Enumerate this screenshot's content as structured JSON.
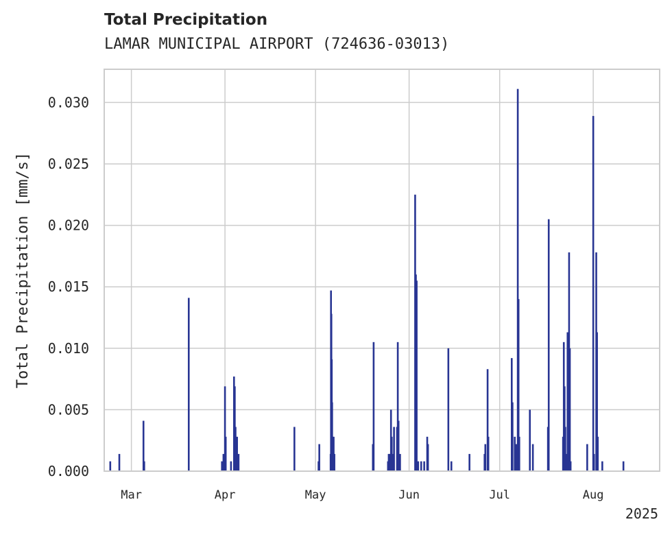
{
  "header": {
    "title": "Total Precipitation",
    "subtitle": "LAMAR MUNICIPAL AIRPORT (724636-03013)"
  },
  "chart_data": {
    "type": "bar",
    "title": "Total Precipitation",
    "subtitle": "LAMAR MUNICIPAL AIRPORT (724636-03013)",
    "xlabel": "",
    "ylabel": "Total Precipitation [mm/s]",
    "xlim": [
      "2025-02-20",
      "2025-08-23"
    ],
    "ylim": [
      0,
      0.0327
    ],
    "grid": true,
    "bar_color": "#283593",
    "y_ticks": [
      0.0,
      0.005,
      0.01,
      0.015,
      0.02,
      0.025,
      0.03
    ],
    "y_tick_labels": [
      "0.000",
      "0.005",
      "0.010",
      "0.015",
      "0.020",
      "0.025",
      "0.030"
    ],
    "x_ticks": [
      "2025-03-01",
      "2025-04-01",
      "2025-05-01",
      "2025-06-01",
      "2025-07-01",
      "2025-08-01"
    ],
    "x_tick_labels": [
      "Mar",
      "Apr",
      "May",
      "Jun",
      "Jul",
      "Aug"
    ],
    "x_offset_label": "2025",
    "series": [
      {
        "x": [
          "2025-02-22",
          "2025-02-25",
          "2025-03-05",
          "2025-03-05 06:00",
          "2025-03-20",
          "2025-03-31",
          "2025-03-31 12:00",
          "2025-04-01",
          "2025-04-01 06:00",
          "2025-04-02",
          "2025-04-02 12:00",
          "2025-04-03",
          "2025-04-04",
          "2025-04-04 06:00",
          "2025-04-04 12:00",
          "2025-04-05",
          "2025-04-05 12:00",
          "2025-04-24",
          "2025-05-02",
          "2025-05-02 06:00",
          "2025-05-06",
          "2025-05-06 03:00",
          "2025-05-06 06:00",
          "2025-05-06 09:00",
          "2025-05-06 12:00",
          "2025-05-06 15:00",
          "2025-05-07",
          "2025-05-07 06:00",
          "2025-05-20",
          "2025-05-20 06:00",
          "2025-05-25",
          "2025-05-25 06:00",
          "2025-05-25 12:00",
          "2025-05-26",
          "2025-05-26 06:00",
          "2025-05-26 12:00",
          "2025-05-27",
          "2025-05-28",
          "2025-05-28 06:00",
          "2025-05-28 12:00",
          "2025-05-29",
          "2025-06-03",
          "2025-06-03 06:00",
          "2025-06-03 12:00",
          "2025-06-04",
          "2025-06-05",
          "2025-06-06",
          "2025-06-07",
          "2025-06-07 06:00",
          "2025-06-14",
          "2025-06-15",
          "2025-06-21",
          "2025-06-26",
          "2025-06-26 06:00",
          "2025-06-27",
          "2025-06-27 06:00",
          "2025-07-05",
          "2025-07-05 06:00",
          "2025-07-06",
          "2025-07-06 12:00",
          "2025-07-07",
          "2025-07-07 06:00",
          "2025-07-07 12:00",
          "2025-07-11",
          "2025-07-12",
          "2025-07-17",
          "2025-07-17 06:00",
          "2025-07-22",
          "2025-07-22 06:00",
          "2025-07-22 12:00",
          "2025-07-22 18:00",
          "2025-07-23",
          "2025-07-23 12:00",
          "2025-07-24",
          "2025-07-24 06:00",
          "2025-07-24 12:00",
          "2025-07-30",
          "2025-08-01",
          "2025-08-01 06:00",
          "2025-08-02",
          "2025-08-02 06:00",
          "2025-08-02 12:00",
          "2025-08-04",
          "2025-08-11"
        ],
        "values": [
          0.0008,
          0.0014,
          0.0041,
          0.0008,
          0.0141,
          0.0008,
          0.0014,
          0.0069,
          0.0028,
          0.0,
          0.0,
          0.0008,
          0.0077,
          0.0069,
          0.0036,
          0.0028,
          0.0014,
          0.0036,
          0.0008,
          0.0022,
          0.0014,
          0.0147,
          0.0128,
          0.0091,
          0.0056,
          0.0028,
          0.0028,
          0.0014,
          0.0022,
          0.0105,
          0.0008,
          0.0014,
          0.0014,
          0.005,
          0.0028,
          0.0014,
          0.0036,
          0.0036,
          0.0105,
          0.0041,
          0.0014,
          0.0225,
          0.016,
          0.0155,
          0.0008,
          0.0008,
          0.0008,
          0.0028,
          0.0022,
          0.01,
          0.0008,
          0.0014,
          0.0014,
          0.0022,
          0.0083,
          0.0028,
          0.0092,
          0.0056,
          0.0028,
          0.0022,
          0.0311,
          0.014,
          0.0028,
          0.005,
          0.0022,
          0.0036,
          0.0205,
          0.0028,
          0.0105,
          0.0069,
          0.0036,
          0.0014,
          0.0113,
          0.0178,
          0.01,
          0.0008,
          0.0022,
          0.0289,
          0.0014,
          0.0178,
          0.0113,
          0.0028,
          0.0008,
          0.0008
        ]
      }
    ]
  }
}
